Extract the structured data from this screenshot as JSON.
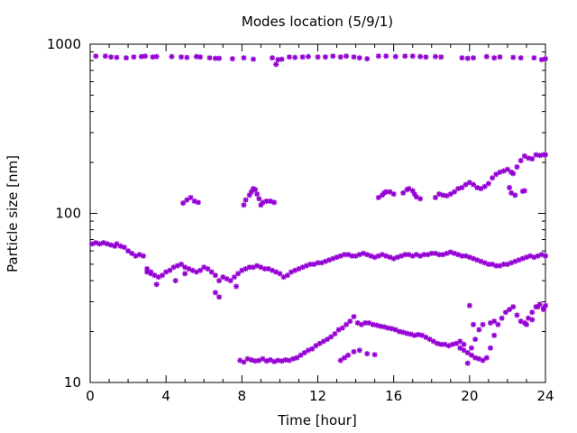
{
  "chart_data": {
    "type": "scatter",
    "title": "Modes location (5/9/1)",
    "xlabel": "Time [hour]",
    "ylabel": "Particle size [nm]",
    "xlim": [
      0,
      24
    ],
    "ylim": [
      10,
      1000
    ],
    "yscale": "log",
    "grid": false,
    "legend": "none",
    "marker_color": "#9400d3",
    "x_ticks": [
      0,
      4,
      8,
      12,
      16,
      20,
      24
    ],
    "x_tick_labels": [
      "0",
      "4",
      "8",
      "12",
      "16",
      "20",
      "24"
    ],
    "y_ticks": [
      10,
      100,
      1000
    ],
    "y_tick_labels": [
      "10",
      "100",
      "1000"
    ],
    "series": [
      {
        "x": [
          0.1,
          0.3,
          0.5,
          0.7,
          0.9,
          1.1,
          1.3,
          1.4,
          1.6,
          1.8,
          2.0,
          2.2,
          2.4,
          2.6,
          2.8,
          3.0,
          3.2,
          3.4,
          3.6,
          3.8,
          4.0,
          4.2,
          4.4,
          4.6,
          4.8,
          5.0,
          5.2,
          5.4,
          5.6,
          5.8,
          6.0,
          6.2,
          6.4,
          6.6,
          6.8,
          7.0,
          7.2,
          7.4,
          7.6,
          7.8,
          8.0,
          8.2,
          8.4,
          8.6,
          8.8,
          9.0,
          9.2,
          9.4,
          9.6,
          9.8,
          10.0,
          10.2,
          10.4,
          10.6,
          10.8,
          11.0,
          11.2,
          11.4,
          11.6,
          11.8,
          12.0,
          12.2,
          12.4,
          12.6,
          12.8,
          13.0,
          13.2,
          13.4,
          13.6,
          13.8,
          14.0,
          14.2,
          14.4,
          14.6,
          14.8,
          15.0,
          15.2,
          15.4,
          15.6,
          15.8,
          16.0,
          16.2,
          16.4,
          16.6,
          16.8,
          17.0,
          17.2,
          17.4,
          17.6,
          17.8,
          18.0,
          18.2,
          18.4,
          18.6,
          18.8,
          19.0,
          19.2,
          19.4,
          19.6,
          19.8,
          20.0,
          20.2,
          20.4,
          20.6,
          20.8,
          21.0,
          21.2,
          21.4,
          21.6,
          21.8,
          22.0,
          22.2,
          22.4,
          22.6,
          22.8,
          23.0,
          23.2,
          23.4,
          23.6,
          23.8,
          24.0,
          3.0,
          3.2,
          3.5,
          4.5,
          5.0,
          6.6,
          6.8,
          7.7
        ],
        "y": [
          66,
          67,
          66,
          67,
          66,
          65,
          64,
          66,
          64,
          63,
          60,
          58,
          56,
          57,
          56,
          45,
          44,
          43,
          42,
          43,
          45,
          46,
          48,
          49,
          50,
          48,
          47,
          46,
          45,
          46,
          48,
          47,
          45,
          43,
          40,
          42,
          41,
          40,
          42,
          44,
          46,
          47,
          48,
          48,
          49,
          48,
          47,
          47,
          46,
          45,
          44,
          42,
          43,
          45,
          46,
          47,
          48,
          49,
          50,
          50,
          51,
          51,
          52,
          53,
          54,
          55,
          56,
          57,
          57,
          56,
          56,
          57,
          58,
          57,
          56,
          55,
          56,
          57,
          56,
          55,
          54,
          55,
          56,
          57,
          57,
          56,
          57,
          56,
          57,
          57,
          58,
          58,
          57,
          57,
          58,
          59,
          58,
          57,
          56,
          56,
          55,
          54,
          53,
          52,
          51,
          50,
          50,
          49,
          49,
          50,
          50,
          51,
          52,
          53,
          54,
          55,
          56,
          55,
          56,
          57,
          56,
          47,
          45,
          38,
          40,
          44,
          34,
          32,
          37
        ],
        "name": ""
      },
      {
        "x": [
          0.3,
          0.8,
          1.1,
          1.4,
          1.9,
          2.3,
          2.7,
          2.9,
          3.3,
          3.5,
          4.3,
          4.8,
          5.1,
          5.6,
          5.8,
          6.3,
          6.6,
          6.8,
          7.5,
          8.1,
          8.6,
          9.6,
          9.8,
          9.9,
          10.1,
          10.5,
          10.8,
          11.2,
          11.5,
          12.0,
          12.4,
          12.8,
          13.2,
          13.5,
          13.9,
          14.2,
          14.6,
          15.2,
          15.6,
          16.1,
          16.6,
          17.0,
          17.4,
          17.7,
          18.2,
          18.5,
          19.6,
          19.9,
          20.2,
          20.9,
          21.3,
          21.6,
          22.3,
          22.7,
          23.4,
          23.8,
          24.0
        ],
        "y": [
          850,
          850,
          840,
          835,
          830,
          840,
          845,
          850,
          840,
          845,
          845,
          840,
          835,
          845,
          840,
          830,
          825,
          825,
          820,
          830,
          815,
          830,
          760,
          810,
          815,
          840,
          835,
          840,
          845,
          840,
          840,
          850,
          840,
          850,
          840,
          830,
          820,
          850,
          850,
          845,
          850,
          850,
          845,
          840,
          845,
          840,
          830,
          825,
          830,
          845,
          830,
          840,
          835,
          830,
          830,
          810,
          820
        ],
        "name": ""
      },
      {
        "x": [
          4.9,
          5.1,
          5.3,
          5.5,
          5.7,
          8.1,
          8.2,
          8.4,
          8.5,
          8.6,
          8.7,
          8.8,
          8.9,
          9.0,
          9.1,
          9.3,
          9.5,
          9.7,
          15.2,
          15.4,
          15.5,
          15.6,
          15.8,
          16.0,
          16.5,
          16.7,
          16.8,
          17.0,
          17.1,
          17.2,
          17.4,
          18.2,
          18.4,
          18.6,
          18.8,
          19.0,
          19.2,
          19.4,
          19.6,
          19.8,
          20.0,
          20.2,
          20.4,
          20.6,
          20.8,
          21.0,
          21.2,
          21.4,
          21.6,
          21.8,
          22.0,
          22.2,
          22.3,
          22.5,
          22.7,
          22.9,
          23.1,
          23.3,
          23.5,
          23.7,
          23.9,
          24.0,
          22.1,
          22.2,
          22.4,
          22.8,
          22.9
        ],
        "y": [
          115,
          120,
          124,
          118,
          116,
          112,
          120,
          128,
          134,
          140,
          138,
          130,
          122,
          112,
          116,
          118,
          118,
          116,
          124,
          128,
          132,
          134,
          134,
          130,
          132,
          138,
          140,
          136,
          130,
          125,
          122,
          124,
          130,
          128,
          127,
          130,
          134,
          140,
          142,
          148,
          152,
          148,
          142,
          140,
          144,
          150,
          162,
          170,
          175,
          178,
          182,
          175,
          172,
          188,
          205,
          218,
          212,
          210,
          222,
          220,
          222,
          222,
          142,
          132,
          128,
          135,
          136
        ],
        "name": ""
      },
      {
        "x": [
          7.9,
          8.1,
          8.3,
          8.5,
          8.7,
          8.9,
          9.1,
          9.3,
          9.5,
          9.7,
          9.9,
          10.1,
          10.3,
          10.5,
          10.7,
          10.9,
          11.1,
          11.3,
          11.5,
          11.7,
          11.9,
          12.1,
          12.3,
          12.5,
          12.7,
          12.9,
          13.1,
          13.3,
          13.5,
          13.7,
          13.9,
          14.1,
          14.3,
          14.5,
          14.7,
          14.9,
          15.1,
          15.3,
          15.5,
          15.7,
          15.9,
          16.1,
          16.3,
          16.5,
          16.7,
          16.9,
          17.1,
          17.3,
          17.5,
          17.7,
          17.9,
          18.1,
          18.3,
          18.5,
          18.7,
          18.9,
          19.1,
          19.3,
          19.5,
          19.7,
          19.9,
          20.1,
          20.3,
          20.5,
          20.7,
          20.9,
          21.1,
          21.3,
          21.5,
          21.7,
          21.9,
          22.1,
          22.3,
          22.5,
          22.7,
          22.9,
          23.1,
          23.3,
          23.5,
          23.7,
          23.9,
          24.0,
          13.2,
          13.4,
          13.6,
          13.9,
          14.2,
          14.6,
          15.0,
          19.5,
          19.7,
          19.9,
          20.1,
          20.3,
          20.5,
          20.7,
          21.1,
          21.3,
          20.0,
          20.2,
          23.0,
          23.3,
          23.6,
          23.9
        ],
        "y": [
          13.5,
          13.2,
          13.8,
          13.6,
          13.4,
          13.5,
          13.8,
          13.4,
          13.6,
          13.3,
          13.5,
          13.4,
          13.6,
          13.5,
          13.8,
          14.0,
          14.5,
          15.0,
          15.5,
          15.8,
          16.5,
          17.0,
          17.5,
          18.0,
          18.6,
          19.4,
          20.5,
          21.0,
          22.0,
          23.0,
          24.5,
          22.5,
          22.0,
          22.5,
          22.5,
          22.0,
          21.8,
          21.5,
          21.3,
          21.0,
          20.8,
          20.5,
          20.0,
          19.8,
          19.5,
          19.3,
          19.0,
          19.2,
          19.0,
          18.5,
          18.0,
          17.5,
          17.0,
          16.8,
          16.8,
          16.5,
          16.8,
          17.0,
          16.0,
          15.5,
          15.0,
          14.5,
          14.0,
          13.8,
          13.5,
          14.0,
          16.0,
          19.0,
          22.0,
          24.0,
          26.0,
          27.0,
          28.0,
          25.0,
          23.0,
          22.5,
          24.0,
          26.0,
          28.0,
          29.0,
          27.5,
          28.5,
          13.5,
          14.0,
          14.5,
          15.2,
          15.5,
          14.8,
          14.6,
          17.5,
          16.8,
          13.0,
          16.0,
          18.0,
          20.5,
          22.0,
          22.5,
          23.0,
          28.5,
          22.0,
          22.0,
          23.5,
          28.0,
          27.0
        ]
      }
    ]
  }
}
